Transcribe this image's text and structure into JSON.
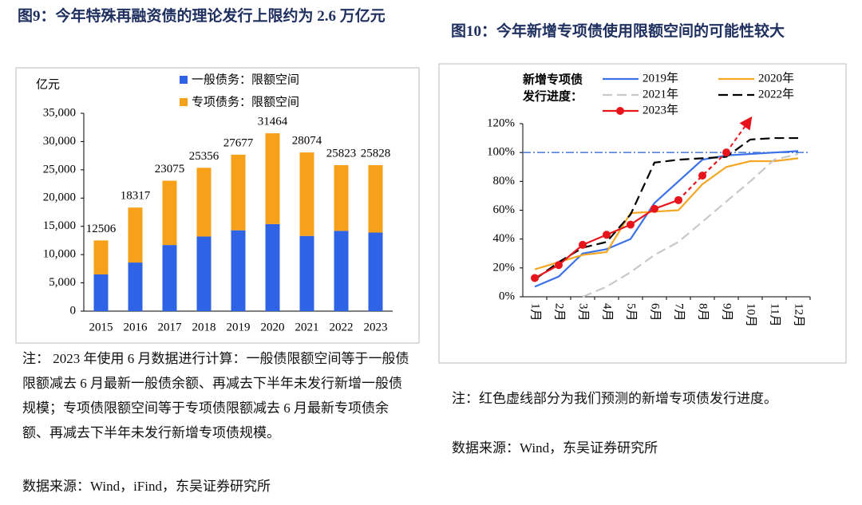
{
  "chart_data": [
    {
      "type": "stacked_bar",
      "title": "图9：今年特殊再融资债的理论发行上限约为 2.6 万亿元",
      "ylabel": "亿元",
      "categories": [
        "2015",
        "2016",
        "2017",
        "2018",
        "2019",
        "2020",
        "2021",
        "2022",
        "2023"
      ],
      "series": [
        {
          "name": "一般债务：限额空间",
          "color": "#2f63e6",
          "values": [
            6500,
            8600,
            11700,
            13200,
            14300,
            15400,
            13300,
            14200,
            13900
          ]
        },
        {
          "name": "专项债务：限额空间",
          "color": "#f7a11a",
          "values": [
            6006,
            9717,
            11375,
            12156,
            13377,
            16064,
            14774,
            11623,
            11928
          ]
        }
      ],
      "totals": [
        12506,
        18317,
        23075,
        25356,
        27677,
        31464,
        28074,
        25823,
        25828
      ],
      "ylim": [
        0,
        35000
      ],
      "yticks": [
        0,
        {
          "value": 5000,
          "label": "5,000"
        },
        {
          "value": 10000,
          "label": "10,000"
        },
        {
          "value": 15000,
          "label": "15,000"
        },
        {
          "value": 20000,
          "label": "20,000"
        },
        {
          "value": 25000,
          "label": "25,000"
        },
        {
          "value": 30000,
          "label": "30,000"
        },
        {
          "value": 35000,
          "label": "35,000"
        }
      ],
      "note": "注：  2023 年使用 6 月数据进行计算：一般债限额空间等于一般债限额减去 6 月最新一般债余额、再减去下半年未发行新增一般债规模；专项债限额空间等于专项债限额减去 6 月最新专项债余额、再减去下半年未发行新增专项债规模。",
      "source": "数据来源：Wind，iFind，东吴证券研究所"
    },
    {
      "type": "line",
      "title": "图10：今年新增专项债使用限额空间的可能性较大",
      "legend_title": [
        "新增专项债",
        "发行进度："
      ],
      "categories": [
        "1月",
        "2月",
        "3月",
        "4月",
        "5月",
        "6月",
        "7月",
        "8月",
        "9月",
        "10月",
        "11月",
        "12月"
      ],
      "series": [
        {
          "name": "2019年",
          "color": "#3c72e8",
          "style": "solid",
          "values": [
            7,
            14,
            30,
            33,
            40,
            65,
            80,
            95,
            98,
            99,
            100,
            101
          ]
        },
        {
          "name": "2020年",
          "color": "#f5a623",
          "style": "solid",
          "values": [
            19,
            24,
            29,
            31,
            58,
            59,
            60,
            78,
            90,
            94,
            94,
            96
          ]
        },
        {
          "name": "2021年",
          "color": "#c8c8c8",
          "style": "dashed",
          "values": [
            null,
            null,
            0,
            7,
            17,
            29,
            38,
            52,
            66,
            80,
            95,
            99
          ]
        },
        {
          "name": "2022年",
          "color": "#000000",
          "style": "dashed",
          "values": [
            12,
            24,
            34,
            38,
            57,
            93,
            95,
            96,
            97,
            109,
            110,
            110
          ]
        },
        {
          "name": "2023年",
          "color": "#e8141b",
          "style": "solid",
          "markers": true,
          "dashed_from_index": 6,
          "values": [
            13,
            22,
            36,
            43,
            50,
            61,
            67,
            84,
            100,
            null,
            null,
            null
          ]
        }
      ],
      "reference_line": 100,
      "reference_color": "#4a77d4",
      "ylim": [
        0,
        120
      ],
      "yticks": [
        {
          "value": 0,
          "label": "0%"
        },
        {
          "value": 20,
          "label": "20%"
        },
        {
          "value": 40,
          "label": "40%"
        },
        {
          "value": 60,
          "label": "60%"
        },
        {
          "value": 80,
          "label": "80%"
        },
        {
          "value": 100,
          "label": "100%"
        },
        {
          "value": 120,
          "label": "120%"
        }
      ],
      "note": "注：红色虚线部分为我们预测的新增专项债发行进度。",
      "source": "数据来源：Wind，东吴证券研究所"
    }
  ]
}
